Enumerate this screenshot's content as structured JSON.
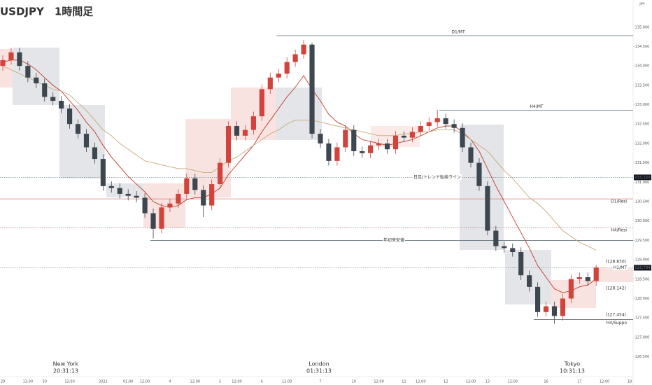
{
  "chart_data": {
    "type": "candlestick",
    "title": "USDJPY　1時間足",
    "currency": "JPY",
    "up_color": "#d0443c",
    "down_color": "#3d4750",
    "ylim": [
      125.95,
      135.7
    ],
    "yticks": [
      {
        "value": 126.5,
        "label": "126.500"
      },
      {
        "value": 127,
        "label": "127.000"
      },
      {
        "value": 127.5,
        "label": "127.500"
      },
      {
        "value": 128,
        "label": "128.000"
      },
      {
        "value": 128.5,
        "label": "128.500"
      },
      {
        "value": 129,
        "label": "129.000"
      },
      {
        "value": 129.5,
        "label": "129.500"
      },
      {
        "value": 130,
        "label": "130.000"
      },
      {
        "value": 130.5,
        "label": "130.500"
      },
      {
        "value": 131,
        "label": "131.000"
      },
      {
        "value": 131.5,
        "label": "131.500"
      },
      {
        "value": 132,
        "label": "132.000"
      },
      {
        "value": 132.5,
        "label": "132.500"
      },
      {
        "value": 133,
        "label": "133.000"
      },
      {
        "value": 133.5,
        "label": "133.500"
      },
      {
        "value": 134,
        "label": "134.000"
      },
      {
        "value": 134.5,
        "label": "134.500"
      },
      {
        "value": 135,
        "label": "135.000"
      }
    ],
    "categories": [
      "29",
      null,
      null,
      "13:00",
      null,
      "30",
      null,
      null,
      "12:00",
      null,
      null,
      null,
      "2022",
      null,
      null,
      "01:00",
      null,
      "12:00",
      null,
      null,
      "4",
      null,
      null,
      "12:00",
      null,
      null,
      "5",
      null,
      "12:00",
      null,
      null,
      "6",
      null,
      null,
      "12:00",
      null,
      null,
      null,
      "7",
      null,
      null,
      null,
      "10",
      null,
      null,
      "12:00",
      null,
      null,
      "11",
      null,
      "12:00",
      null,
      null,
      "12",
      null,
      null,
      "12:00",
      null,
      "13",
      null,
      null,
      "12:00",
      null,
      null,
      null,
      "16",
      null,
      null,
      null,
      "17",
      null,
      null,
      "12:00",
      null,
      null,
      "18"
    ],
    "ohlc": [
      [
        134.0,
        134.27,
        133.88,
        134.15
      ],
      [
        134.15,
        134.47,
        134.03,
        134.35
      ],
      [
        134.35,
        134.47,
        133.88,
        134.0
      ],
      [
        134.0,
        134.12,
        133.58,
        133.7
      ],
      [
        133.7,
        133.82,
        133.43,
        133.55
      ],
      [
        133.55,
        133.67,
        133.08,
        133.2
      ],
      [
        133.2,
        133.32,
        132.98,
        133.1
      ],
      [
        133.1,
        133.22,
        132.78,
        132.9
      ],
      [
        132.9,
        133.02,
        132.38,
        132.5
      ],
      [
        132.5,
        132.62,
        132.13,
        132.25
      ],
      [
        132.25,
        132.37,
        131.78,
        131.9
      ],
      [
        131.9,
        132.02,
        131.48,
        131.6
      ],
      [
        131.6,
        131.72,
        130.78,
        130.9
      ],
      [
        130.9,
        131.02,
        130.73,
        130.85
      ],
      [
        130.85,
        130.97,
        130.58,
        130.7
      ],
      [
        130.7,
        130.82,
        130.53,
        130.65
      ],
      [
        130.65,
        130.77,
        130.48,
        130.6
      ],
      [
        130.6,
        130.72,
        130.08,
        130.2
      ],
      [
        130.2,
        130.32,
        129.55,
        129.8
      ],
      [
        129.8,
        130.47,
        129.68,
        130.35
      ],
      [
        130.35,
        130.57,
        130.23,
        130.45
      ],
      [
        130.45,
        130.82,
        130.33,
        130.7
      ],
      [
        130.7,
        131.22,
        130.58,
        131.1
      ],
      [
        131.1,
        131.22,
        130.68,
        130.8
      ],
      [
        130.8,
        130.92,
        130.1,
        130.4
      ],
      [
        130.4,
        131.07,
        130.28,
        130.95
      ],
      [
        130.95,
        131.62,
        130.83,
        131.5
      ],
      [
        131.5,
        132.57,
        131.38,
        132.45
      ],
      [
        132.45,
        132.57,
        132.08,
        132.2
      ],
      [
        132.2,
        132.47,
        132.08,
        132.35
      ],
      [
        132.35,
        132.82,
        132.23,
        132.7
      ],
      [
        132.7,
        133.52,
        132.58,
        133.4
      ],
      [
        133.4,
        133.82,
        133.28,
        133.7
      ],
      [
        133.7,
        133.92,
        133.58,
        133.8
      ],
      [
        133.8,
        134.22,
        133.68,
        134.1
      ],
      [
        134.1,
        134.42,
        133.98,
        134.3
      ],
      [
        134.3,
        134.67,
        134.18,
        134.55
      ],
      [
        134.55,
        134.6,
        132.13,
        132.25
      ],
      [
        132.25,
        132.37,
        131.88,
        132.0
      ],
      [
        132.0,
        132.12,
        131.43,
        131.55
      ],
      [
        131.55,
        132.02,
        131.43,
        131.9
      ],
      [
        131.9,
        132.47,
        131.78,
        132.35
      ],
      [
        132.35,
        132.47,
        131.68,
        131.8
      ],
      [
        131.8,
        131.92,
        131.63,
        131.75
      ],
      [
        131.75,
        132.07,
        131.63,
        131.95
      ],
      [
        131.95,
        132.12,
        131.83,
        132.0
      ],
      [
        132.0,
        132.12,
        131.73,
        131.85
      ],
      [
        131.85,
        132.32,
        131.73,
        132.2
      ],
      [
        132.2,
        132.32,
        132.03,
        132.15
      ],
      [
        132.15,
        132.42,
        132.03,
        132.3
      ],
      [
        132.3,
        132.57,
        132.18,
        132.45
      ],
      [
        132.45,
        132.67,
        132.33,
        132.55
      ],
      [
        132.55,
        132.87,
        132.43,
        132.65
      ],
      [
        132.65,
        132.77,
        132.38,
        132.5
      ],
      [
        132.5,
        132.62,
        132.28,
        132.4
      ],
      [
        132.4,
        132.52,
        131.78,
        131.9
      ],
      [
        131.9,
        132.02,
        131.38,
        131.5
      ],
      [
        131.5,
        131.62,
        130.78,
        130.9
      ],
      [
        130.9,
        131.02,
        129.63,
        129.75
      ],
      [
        129.75,
        129.87,
        129.23,
        129.35
      ],
      [
        129.35,
        129.47,
        129.18,
        129.3
      ],
      [
        129.3,
        129.42,
        129.08,
        129.2
      ],
      [
        129.2,
        129.32,
        128.48,
        128.6
      ],
      [
        128.6,
        128.72,
        128.18,
        128.3
      ],
      [
        128.3,
        128.42,
        127.53,
        127.65
      ],
      [
        127.65,
        127.92,
        127.53,
        127.8
      ],
      [
        127.8,
        127.92,
        127.35,
        127.55
      ],
      [
        127.55,
        128.12,
        127.43,
        128.0
      ],
      [
        128.0,
        128.62,
        127.88,
        128.5
      ],
      [
        128.5,
        128.67,
        128.38,
        128.55
      ],
      [
        128.55,
        128.67,
        128.33,
        128.45
      ],
      [
        128.45,
        128.87,
        128.33,
        128.8
      ],
      null,
      null,
      null,
      null
    ],
    "ma_lines": [
      {
        "color": "#c0392b",
        "values": [
          134.1,
          134.15,
          134.15,
          134.05,
          133.9,
          133.7,
          133.5,
          133.35,
          133.1,
          132.85,
          132.55,
          132.3,
          131.95,
          131.65,
          131.4,
          131.15,
          130.95,
          130.75,
          130.5,
          130.4,
          130.35,
          130.4,
          130.55,
          130.6,
          130.6,
          130.7,
          130.85,
          131.2,
          131.45,
          131.7,
          131.95,
          132.3,
          132.6,
          132.9,
          133.2,
          133.45,
          133.75,
          133.4,
          133.1,
          132.75,
          132.55,
          132.45,
          132.25,
          132.1,
          132.05,
          132.0,
          131.95,
          132.0,
          132.05,
          132.1,
          132.2,
          132.3,
          132.4,
          132.45,
          132.45,
          132.3,
          132.1,
          131.8,
          131.35,
          130.9,
          130.5,
          130.1,
          129.7,
          129.3,
          128.85,
          128.55,
          128.25,
          128.15,
          128.2,
          128.3,
          128.35,
          128.5,
          null,
          null,
          null,
          null
        ]
      },
      {
        "color": "#c8a878",
        "values": [
          134.0,
          133.9,
          133.8,
          133.7,
          133.6,
          133.5,
          133.4,
          133.35,
          133.25,
          133.05,
          132.85,
          132.6,
          132.35,
          132.2,
          132.0,
          131.85,
          131.7,
          131.55,
          131.5,
          131.45,
          131.4,
          131.35,
          131.35,
          131.3,
          131.25,
          131.25,
          131.4,
          131.55,
          131.65,
          131.8,
          131.95,
          132.1,
          132.25,
          132.35,
          132.5,
          132.6,
          132.6,
          132.6,
          132.55,
          132.5,
          132.45,
          132.4,
          132.35,
          132.3,
          132.25,
          132.2,
          132.2,
          132.2,
          132.25,
          132.25,
          132.3,
          132.3,
          132.35,
          132.35,
          132.35,
          132.25,
          132.1,
          131.95,
          131.8,
          131.55,
          131.3,
          131.1,
          130.85,
          130.6,
          130.45,
          130.25,
          130.0,
          129.75,
          129.6,
          129.45,
          129.35,
          129.25,
          null,
          null,
          null,
          null
        ]
      }
    ],
    "levels": [
      {
        "label": "D1/MT",
        "value": 134.78,
        "color": "#455a64",
        "style": "solid"
      },
      {
        "label": "H4/MT",
        "value": 132.86,
        "color": "#455a64",
        "style": "solid"
      },
      {
        "label": "日足/トレンド転換ライン",
        "value": 131.125,
        "color": "#78909c",
        "style": "dotted"
      },
      {
        "label": "D1/Resi",
        "value": 130.57,
        "color": "#e57373",
        "style": "solid"
      },
      {
        "label": "H4/Resi",
        "value": 129.83,
        "color": "#b07070",
        "style": "dotted"
      },
      {
        "label": "年初来安値",
        "value": 129.5,
        "color": "#455a64",
        "style": "solid"
      },
      {
        "label": "H1/MT",
        "value": 128.794,
        "color": "#90a4ae",
        "style": "dotted"
      },
      {
        "label": "H4/Suppo",
        "value": 127.454,
        "color": "#263238",
        "style": "solid"
      }
    ],
    "annotations": [
      "(128.830)",
      "(128.142)",
      "(127.454)"
    ],
    "price_badges": [
      131.125,
      128.794
    ],
    "sessions": [
      {
        "name": "New York",
        "time": "20:31:13"
      },
      {
        "name": "London",
        "time": "01:31:13"
      },
      {
        "name": "Tokyo",
        "time": "10:31:13"
      }
    ]
  }
}
